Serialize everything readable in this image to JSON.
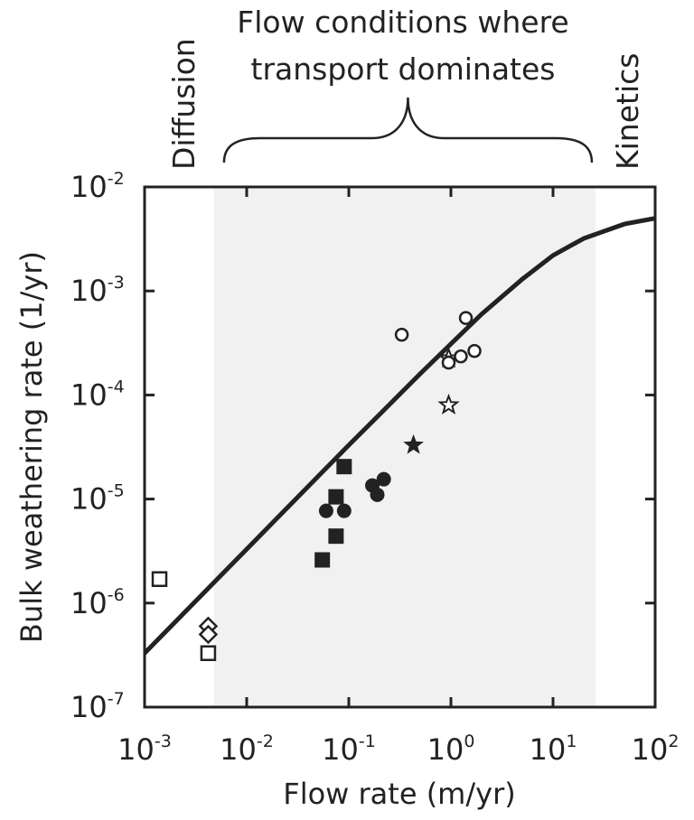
{
  "chart_data": {
    "type": "scatter",
    "title": "",
    "xlabel": "Flow rate (m/yr)",
    "ylabel": "Bulk weathering rate (1/yr)",
    "xscale": "log",
    "yscale": "log",
    "xlim": [
      0.001,
      100
    ],
    "ylim": [
      1e-07,
      0.01
    ],
    "x_ticks": [
      {
        "base": "10",
        "exp": "-3",
        "value": 0.001
      },
      {
        "base": "10",
        "exp": "-2",
        "value": 0.01
      },
      {
        "base": "10",
        "exp": "-1",
        "value": 0.1
      },
      {
        "base": "10",
        "exp": "0",
        "value": 1
      },
      {
        "base": "10",
        "exp": "1",
        "value": 10
      },
      {
        "base": "10",
        "exp": "2",
        "value": 100
      }
    ],
    "y_ticks": [
      {
        "base": "10",
        "exp": "-7",
        "value": 1e-07
      },
      {
        "base": "10",
        "exp": "-6",
        "value": 1e-06
      },
      {
        "base": "10",
        "exp": "-5",
        "value": 1e-05
      },
      {
        "base": "10",
        "exp": "-4",
        "value": 0.0001
      },
      {
        "base": "10",
        "exp": "-3",
        "value": 0.001
      },
      {
        "base": "10",
        "exp": "-2",
        "value": 0.01
      }
    ],
    "shaded_region": {
      "x_from": 0.0048,
      "x_to": 26,
      "color": "#f1f1f1"
    },
    "annotations": {
      "left": "Diffusion",
      "right": "Kinetics",
      "center_line1": "Flow conditions where",
      "center_line2": "transport dominates",
      "brace_from": 0.006,
      "brace_to": 24
    },
    "line": {
      "color": "#222222",
      "points": [
        [
          0.001,
          3.3e-07
        ],
        [
          0.002,
          6.6e-07
        ],
        [
          0.005,
          1.65e-06
        ],
        [
          0.01,
          3.3e-06
        ],
        [
          0.02,
          6.6e-06
        ],
        [
          0.05,
          1.65e-05
        ],
        [
          0.1,
          3.3e-05
        ],
        [
          0.2,
          6.5e-05
        ],
        [
          0.5,
          0.00016
        ],
        [
          1,
          0.00031
        ],
        [
          2,
          0.0006
        ],
        [
          5,
          0.0013
        ],
        [
          10,
          0.0022
        ],
        [
          20,
          0.0032
        ],
        [
          50,
          0.0044
        ],
        [
          100,
          0.005
        ]
      ]
    },
    "series": [
      {
        "marker": "square-open",
        "points": [
          [
            0.0014,
            1.7e-06
          ],
          [
            0.0042,
            3.3e-07
          ]
        ]
      },
      {
        "marker": "diamond-open",
        "points": [
          [
            0.0042,
            6e-07
          ],
          [
            0.0042,
            5e-07
          ]
        ]
      },
      {
        "marker": "square-filled",
        "points": [
          [
            0.055,
            2.6e-06
          ],
          [
            0.075,
            4.4e-06
          ],
          [
            0.075,
            1.05e-05
          ],
          [
            0.09,
            2.05e-05
          ]
        ]
      },
      {
        "marker": "circle-filled",
        "points": [
          [
            0.06,
            7.7e-06
          ],
          [
            0.09,
            7.7e-06
          ],
          [
            0.17,
            1.35e-05
          ],
          [
            0.19,
            1.1e-05
          ],
          [
            0.22,
            1.55e-05
          ]
        ]
      },
      {
        "marker": "star-filled",
        "points": [
          [
            0.43,
            3.3e-05
          ]
        ]
      },
      {
        "marker": "star-open",
        "points": [
          [
            0.95,
            0.000225
          ],
          [
            0.95,
            8e-05
          ]
        ]
      },
      {
        "marker": "circle-open",
        "points": [
          [
            0.33,
            0.00038
          ],
          [
            0.95,
            0.000205
          ],
          [
            1.25,
            0.000235
          ],
          [
            1.4,
            0.00055
          ],
          [
            1.7,
            0.000265
          ]
        ]
      }
    ],
    "grid": false
  }
}
